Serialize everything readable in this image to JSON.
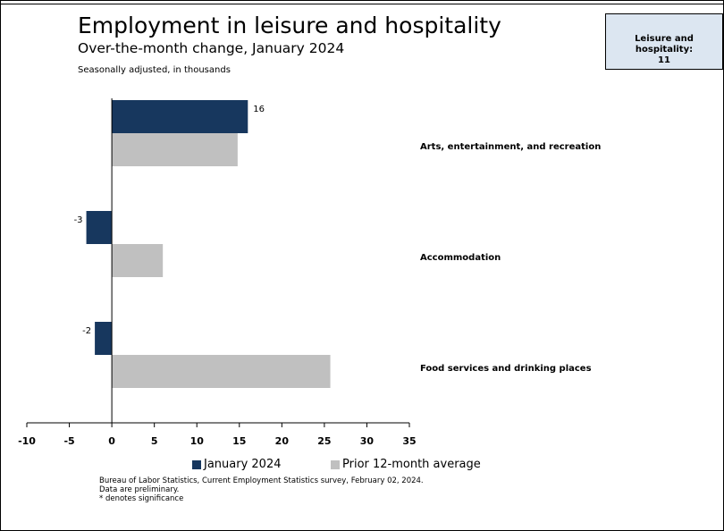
{
  "header": {
    "title": "Employment in leisure and hospitality",
    "subtitle": "Over-the-month change, January 2024",
    "note": "Seasonally adjusted, in thousands"
  },
  "callout": {
    "label": "Leisure and hospitality:",
    "value": "11"
  },
  "colors": {
    "january_2024": "#17375e",
    "prior_average": "#c0c0c0"
  },
  "chart_data": {
    "type": "bar",
    "orientation": "horizontal",
    "categories": [
      "Arts, entertainment, and recreation",
      "Accommodation",
      "Food services and drinking places"
    ],
    "series": [
      {
        "name": "January 2024",
        "values": [
          16,
          -3,
          -2
        ],
        "data_labels": [
          "16",
          "-3",
          "-2"
        ]
      },
      {
        "name": "Prior 12-month average",
        "values": [
          14.8,
          6,
          25.7
        ],
        "data_labels": [
          "",
          "",
          ""
        ]
      }
    ],
    "title": "Employment in leisure and hospitality",
    "subtitle": "Over-the-month change, January 2024",
    "xlabel": "",
    "ylabel": "",
    "xlim": [
      -10,
      35
    ],
    "xticks": [
      "-10",
      "-5",
      "0",
      "5",
      "10",
      "15",
      "20",
      "25",
      "30",
      "35"
    ],
    "grid": false,
    "legend_position": "bottom"
  },
  "footer": {
    "source": "Bureau of Labor Statistics, Current Employment Statistics survey, February 02, 2024.",
    "preliminary": "Data are preliminary.",
    "significance": "* denotes significance"
  }
}
